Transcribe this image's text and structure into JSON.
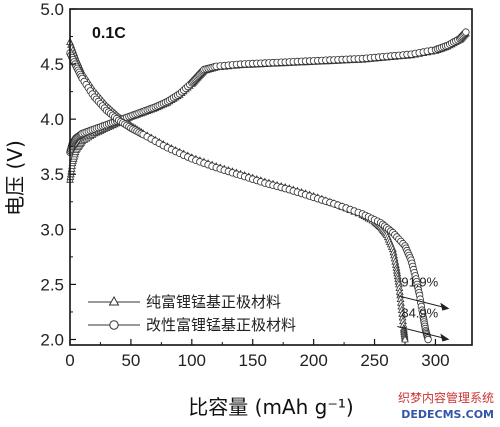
{
  "chart_data": {
    "type": "line",
    "title": "",
    "rate_label": "0.1C",
    "xlabel": "比容量 (mAh g⁻¹)",
    "ylabel": "电压 (V)",
    "xlim": [
      0,
      330
    ],
    "ylim": [
      1.95,
      5.0
    ],
    "x_ticks": [
      0,
      50,
      100,
      150,
      200,
      250,
      300
    ],
    "y_ticks": [
      2.0,
      2.5,
      3.0,
      3.5,
      4.0,
      4.5,
      5.0
    ],
    "y_tick_labels": [
      "2.0",
      "2.5",
      "3.0",
      "3.5",
      "4.0",
      "4.5",
      "5.0"
    ],
    "series": [
      {
        "name": "纯富锂锰基正极材料",
        "marker": "triangle",
        "charge": {
          "x": [
            0,
            2,
            5,
            10,
            20,
            30,
            40,
            50,
            60,
            70,
            80,
            90,
            100,
            105,
            110,
            120,
            140,
            160,
            180,
            200,
            220,
            240,
            260,
            280,
            300,
            310,
            320,
            325
          ],
          "y": [
            3.45,
            3.6,
            3.72,
            3.8,
            3.87,
            3.92,
            3.97,
            4.02,
            4.06,
            4.1,
            4.15,
            4.22,
            4.32,
            4.38,
            4.44,
            4.47,
            4.49,
            4.5,
            4.51,
            4.52,
            4.53,
            4.54,
            4.56,
            4.58,
            4.62,
            4.66,
            4.72,
            4.78
          ]
        },
        "discharge": {
          "x": [
            0,
            5,
            10,
            20,
            30,
            40,
            50,
            60,
            80,
            100,
            120,
            140,
            160,
            180,
            200,
            220,
            240,
            250,
            255,
            260,
            265,
            268,
            270,
            272,
            274,
            275
          ],
          "y": [
            4.7,
            4.55,
            4.42,
            4.25,
            4.12,
            4.02,
            3.94,
            3.87,
            3.75,
            3.65,
            3.57,
            3.5,
            3.43,
            3.37,
            3.3,
            3.22,
            3.13,
            3.07,
            3.02,
            2.95,
            2.82,
            2.65,
            2.5,
            2.3,
            2.1,
            2.0
          ]
        }
      },
      {
        "name": "改性富锂锰基正极材料",
        "marker": "circle",
        "charge": {
          "x": [
            0,
            2,
            5,
            10,
            20,
            30,
            40,
            50,
            60,
            70,
            80,
            90,
            100,
            105,
            110,
            120,
            140,
            160,
            180,
            200,
            220,
            240,
            260,
            280,
            300,
            310,
            320,
            325
          ],
          "y": [
            3.7,
            3.78,
            3.83,
            3.87,
            3.91,
            3.95,
            3.99,
            4.03,
            4.07,
            4.11,
            4.16,
            4.23,
            4.33,
            4.39,
            4.45,
            4.48,
            4.5,
            4.51,
            4.52,
            4.53,
            4.54,
            4.55,
            4.57,
            4.59,
            4.63,
            4.67,
            4.73,
            4.79
          ]
        },
        "discharge": {
          "x": [
            0,
            5,
            10,
            20,
            30,
            40,
            50,
            60,
            80,
            100,
            120,
            140,
            160,
            180,
            200,
            220,
            240,
            255,
            265,
            275,
            280,
            284,
            287,
            290,
            292,
            294
          ],
          "y": [
            4.6,
            4.48,
            4.37,
            4.2,
            4.08,
            3.99,
            3.92,
            3.86,
            3.74,
            3.64,
            3.56,
            3.49,
            3.42,
            3.36,
            3.29,
            3.22,
            3.14,
            3.06,
            2.97,
            2.85,
            2.72,
            2.55,
            2.4,
            2.2,
            2.08,
            2.0
          ]
        }
      }
    ],
    "annotations": [
      {
        "text": "91.9%",
        "x": 272,
        "y": 2.48
      },
      {
        "text": "84.9%",
        "x": 272,
        "y": 2.2
      }
    ],
    "grid": false,
    "legend_position": "bottom-left"
  },
  "watermark": {
    "line1": "织梦内容管理系统",
    "line2": "DEDECMS.COM"
  }
}
